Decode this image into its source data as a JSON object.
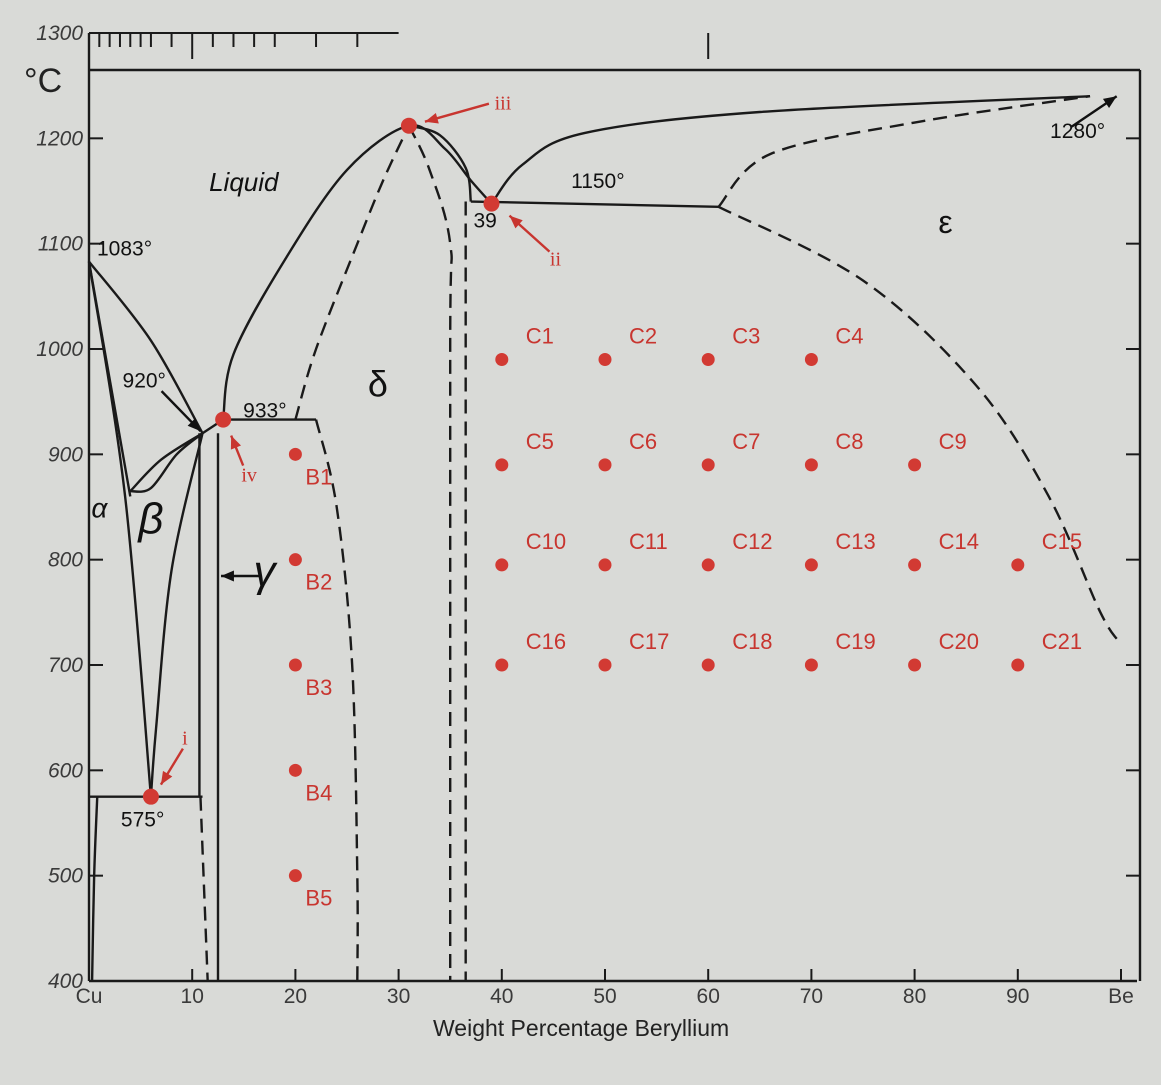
{
  "chart_data": {
    "type": "scatter",
    "title": "",
    "xlabel": "Weight Percentage Beryllium",
    "ylabel": "°C",
    "xlim": [
      0,
      100
    ],
    "ylim": [
      400,
      1300
    ],
    "x_ticks": [
      {
        "value": 0,
        "label": "Cu"
      },
      {
        "value": 10,
        "label": "10"
      },
      {
        "value": 20,
        "label": "20"
      },
      {
        "value": 30,
        "label": "30"
      },
      {
        "value": 40,
        "label": "40"
      },
      {
        "value": 50,
        "label": "50"
      },
      {
        "value": 60,
        "label": "60"
      },
      {
        "value": 70,
        "label": "70"
      },
      {
        "value": 80,
        "label": "80"
      },
      {
        "value": 90,
        "label": "90"
      },
      {
        "value": 100,
        "label": "Be"
      }
    ],
    "y_ticks": [
      {
        "value": 400,
        "label": "400"
      },
      {
        "value": 500,
        "label": "500"
      },
      {
        "value": 600,
        "label": "600"
      },
      {
        "value": 700,
        "label": "700"
      },
      {
        "value": 800,
        "label": "800"
      },
      {
        "value": 900,
        "label": "900"
      },
      {
        "value": 1000,
        "label": "1000"
      },
      {
        "value": 1100,
        "label": "1100"
      },
      {
        "value": 1200,
        "label": "1200"
      },
      {
        "value": 1300,
        "label": "1300"
      }
    ],
    "grid": false,
    "legend": "none",
    "points": [
      {
        "name": "B1",
        "x": 20,
        "y": 900
      },
      {
        "name": "B2",
        "x": 20,
        "y": 800
      },
      {
        "name": "B3",
        "x": 20,
        "y": 700
      },
      {
        "name": "B4",
        "x": 20,
        "y": 600
      },
      {
        "name": "B5",
        "x": 20,
        "y": 500
      },
      {
        "name": "C1",
        "x": 40,
        "y": 990
      },
      {
        "name": "C2",
        "x": 50,
        "y": 990
      },
      {
        "name": "C3",
        "x": 60,
        "y": 990
      },
      {
        "name": "C4",
        "x": 70,
        "y": 990
      },
      {
        "name": "C5",
        "x": 40,
        "y": 890
      },
      {
        "name": "C6",
        "x": 50,
        "y": 890
      },
      {
        "name": "C7",
        "x": 60,
        "y": 890
      },
      {
        "name": "C8",
        "x": 70,
        "y": 890
      },
      {
        "name": "C9",
        "x": 80,
        "y": 890
      },
      {
        "name": "C10",
        "x": 40,
        "y": 795
      },
      {
        "name": "C11",
        "x": 50,
        "y": 795
      },
      {
        "name": "C12",
        "x": 60,
        "y": 795
      },
      {
        "name": "C13",
        "x": 70,
        "y": 795
      },
      {
        "name": "C14",
        "x": 80,
        "y": 795
      },
      {
        "name": "C15",
        "x": 90,
        "y": 795
      },
      {
        "name": "C16",
        "x": 40,
        "y": 700
      },
      {
        "name": "C17",
        "x": 50,
        "y": 700
      },
      {
        "name": "C18",
        "x": 60,
        "y": 700
      },
      {
        "name": "C19",
        "x": 70,
        "y": 700
      },
      {
        "name": "C20",
        "x": 80,
        "y": 700
      },
      {
        "name": "C21",
        "x": 90,
        "y": 700
      }
    ],
    "special_points": [
      {
        "name": "i",
        "x": 6,
        "y": 575
      },
      {
        "name": "ii",
        "x": 39,
        "y": 1138
      },
      {
        "name": "iii",
        "x": 31,
        "y": 1212
      },
      {
        "name": "iv",
        "x": 13,
        "y": 933
      }
    ],
    "temperature_labels": [
      {
        "text": "1083°",
        "x": 0,
        "y": 1083
      },
      {
        "text": "920°",
        "x": 11,
        "y": 920
      },
      {
        "text": "933°",
        "x": 13,
        "y": 933
      },
      {
        "text": "575°",
        "x": 6,
        "y": 575
      },
      {
        "text": "1150°",
        "x": 44,
        "y": 1150
      },
      {
        "text": "39",
        "x": 39,
        "y": 1138
      },
      {
        "text": "1280°",
        "x": 97,
        "y": 1240
      }
    ],
    "phase_labels": [
      {
        "text": "Liquid",
        "x": 15,
        "y": 1150
      },
      {
        "text": "α",
        "x": 1,
        "y": 840
      },
      {
        "text": "β",
        "x": 6,
        "y": 825
      },
      {
        "text": "γ",
        "x": 17,
        "y": 775
      },
      {
        "text": "δ",
        "x": 28,
        "y": 955
      },
      {
        "text": "ε",
        "x": 83,
        "y": 1110
      }
    ],
    "phase_boundaries": {
      "solid": [
        [
          [
            0,
            1083
          ],
          [
            3.5,
            860
          ],
          [
            6,
            575
          ]
        ],
        [
          [
            0,
            1083
          ],
          [
            4,
            860
          ]
        ],
        [
          [
            0,
            1083
          ],
          [
            6,
            1008
          ],
          [
            11,
            920
          ]
        ],
        [
          [
            4,
            865
          ],
          [
            6,
            868
          ],
          [
            8.5,
            900
          ],
          [
            11,
            920
          ]
        ],
        [
          [
            4,
            865
          ],
          [
            7,
            895
          ],
          [
            11,
            920
          ]
        ],
        [
          [
            6,
            575
          ],
          [
            6.5,
            640
          ],
          [
            8,
            790
          ],
          [
            11,
            920
          ]
        ],
        [
          [
            11,
            920
          ],
          [
            13,
            933
          ]
        ],
        [
          [
            13,
            933
          ],
          [
            14,
            995
          ],
          [
            19,
            1085
          ],
          [
            25,
            1170
          ],
          [
            31,
            1212
          ],
          [
            34.5,
            1190
          ],
          [
            37,
            1160
          ],
          [
            39,
            1138
          ]
        ],
        [
          [
            39,
            1138
          ],
          [
            42,
            1175
          ],
          [
            48,
            1205
          ],
          [
            65,
            1225
          ],
          [
            97,
            1240
          ]
        ],
        [
          [
            13,
            933
          ],
          [
            22,
            933
          ]
        ],
        [
          [
            37,
            1140
          ],
          [
            61,
            1135
          ]
        ],
        [
          [
            0,
            575
          ],
          [
            11,
            575
          ]
        ],
        [
          [
            10.7,
            920
          ],
          [
            10.7,
            575
          ]
        ],
        [
          [
            12.5,
            920
          ],
          [
            12.5,
            400
          ]
        ],
        [
          [
            0.8,
            575
          ],
          [
            0.5,
            500
          ],
          [
            0.3,
            400
          ]
        ],
        [
          [
            31,
            1212
          ],
          [
            34,
            1203
          ],
          [
            36.5,
            1172
          ],
          [
            37,
            1140
          ]
        ]
      ],
      "dashed": [
        [
          [
            22,
            933
          ],
          [
            24,
            850
          ],
          [
            25.5,
            700
          ],
          [
            26,
            500
          ],
          [
            26,
            400
          ]
        ],
        [
          [
            20,
            933
          ],
          [
            22,
            1000
          ],
          [
            26,
            1100
          ],
          [
            28.5,
            1160
          ],
          [
            31,
            1212
          ]
        ],
        [
          [
            31,
            1212
          ],
          [
            33,
            1170
          ],
          [
            35,
            1100
          ],
          [
            35,
            1000
          ],
          [
            35,
            400
          ]
        ],
        [
          [
            36.5,
            1140
          ],
          [
            36.5,
            400
          ]
        ],
        [
          [
            61,
            1135
          ],
          [
            66,
            1185
          ],
          [
            80,
            1215
          ],
          [
            97,
            1240
          ]
        ],
        [
          [
            61,
            1135
          ],
          [
            75,
            1065
          ],
          [
            86,
            965
          ],
          [
            93,
            860
          ],
          [
            98,
            750
          ],
          [
            100,
            720
          ]
        ],
        [
          [
            10.8,
            575
          ],
          [
            11.5,
            400
          ]
        ]
      ]
    }
  }
}
